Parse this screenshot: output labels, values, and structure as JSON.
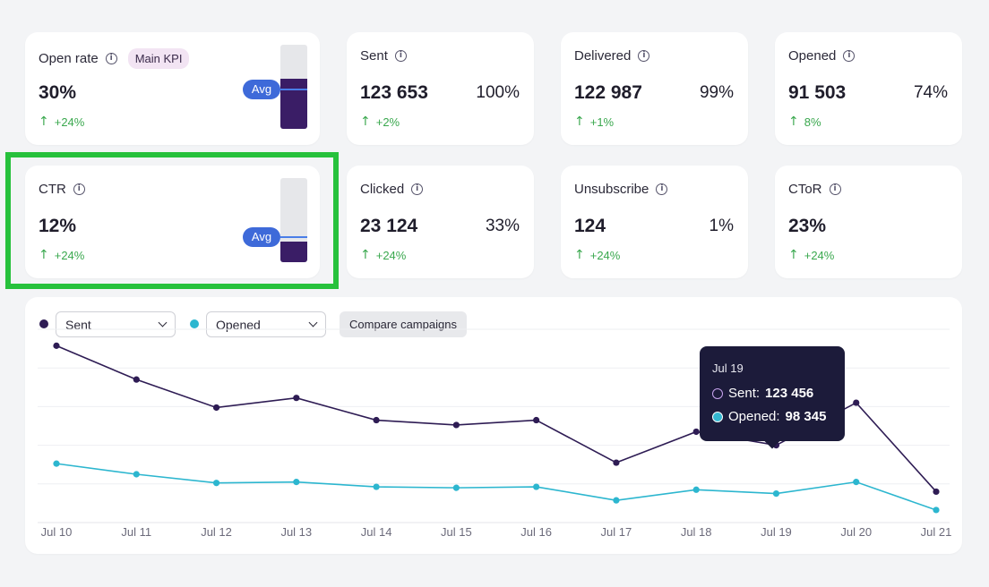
{
  "colors": {
    "sent": "#2e1c54",
    "opened": "#2cb6cf",
    "positive": "#3aa84e",
    "avg_fill": "#3a1d66",
    "avg_pill": "#3e6ad9",
    "highlight": "#27c13c"
  },
  "kpi_cards": [
    {
      "title": "Open rate",
      "badge": "Main KPI",
      "value": "30%",
      "change": "+24%",
      "icon": "info-icon",
      "avg_label": "Avg",
      "fill_fraction": 0.6,
      "avg_fraction": 0.47
    },
    {
      "title": "Sent",
      "value": "123 653",
      "pct": "100%",
      "change": "+2%",
      "icon": "info-icon"
    },
    {
      "title": "Delivered",
      "value": "122 987",
      "pct": "99%",
      "change": "+1%",
      "icon": "info-icon"
    },
    {
      "title": "Opened",
      "value": "91 503",
      "pct": "74%",
      "change": "8%",
      "icon": "info-icon"
    },
    {
      "title": "CTR",
      "value": "12%",
      "change": "+24%",
      "icon": "info-icon",
      "avg_label": "Avg",
      "fill_fraction": 0.25,
      "avg_fraction": 0.3,
      "highlighted": true
    },
    {
      "title": "Clicked",
      "value": "23 124",
      "pct": "33%",
      "change": "+24%",
      "icon": "info-icon"
    },
    {
      "title": "Unsubscribe",
      "value": "124",
      "pct": "1%",
      "change": "+24%",
      "icon": "info-icon"
    },
    {
      "title": "CToR",
      "value": "23%",
      "change": "+24%",
      "icon": "info-icon"
    }
  ],
  "chart_controls": {
    "series1_select": "Sent",
    "series2_select": "Opened",
    "compare_label": "Compare campaigns"
  },
  "tooltip": {
    "date": "Jul 19",
    "sent_label": "Sent:",
    "sent_value": "123 456",
    "opened_label": "Opened:",
    "opened_value": "98 345"
  },
  "chart_data": {
    "type": "line",
    "x": [
      "Jul 10",
      "Jul 11",
      "Jul 12",
      "Jul 13",
      "Jul 14",
      "Jul 15",
      "Jul 16",
      "Jul 17",
      "Jul 18",
      "Jul 19",
      "Jul 20",
      "Jul 21"
    ],
    "series": [
      {
        "name": "Sent",
        "values": [
          183,
          148,
          119,
          129,
          106,
          101,
          106,
          62,
          94,
          80,
          124,
          32
        ]
      },
      {
        "name": "Opened",
        "values": [
          61,
          50,
          41,
          42,
          37,
          36,
          37,
          23,
          34,
          30,
          42,
          13
        ]
      }
    ],
    "ylim": [
      0,
      200
    ],
    "grid": true,
    "yticks_visible": false
  }
}
